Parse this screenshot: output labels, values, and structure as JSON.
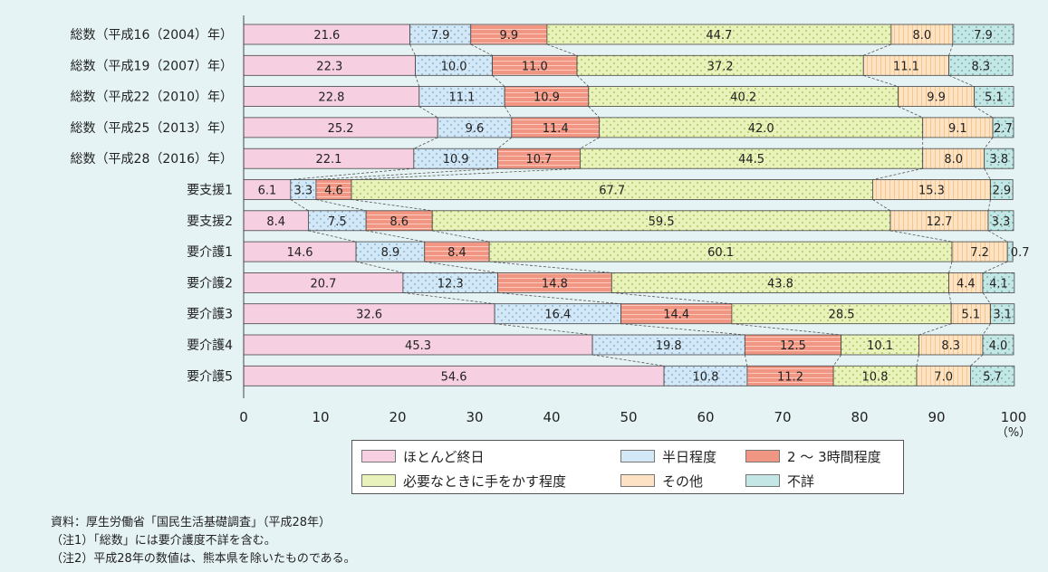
{
  "chart_data": {
    "type": "bar",
    "orientation": "horizontal",
    "stacked": true,
    "categories": [
      "総数（平成16（2004）年）",
      "総数（平成19（2007）年）",
      "総数（平成22（2010）年）",
      "総数（平成25（2013）年）",
      "総数（平成28（2016）年）",
      "要支援1",
      "要支援2",
      "要介護1",
      "要介護2",
      "要介護3",
      "要介護4",
      "要介護5"
    ],
    "series": [
      {
        "name": "ほとんど終日",
        "color": "#f6cfe0",
        "values": [
          21.6,
          22.3,
          22.8,
          25.2,
          22.1,
          6.1,
          8.4,
          14.6,
          20.7,
          32.6,
          45.3,
          54.6
        ]
      },
      {
        "name": "半日程度",
        "color": "#cfe6f6",
        "values": [
          7.9,
          10.0,
          11.1,
          9.6,
          10.9,
          3.3,
          7.5,
          8.9,
          12.3,
          16.4,
          19.8,
          10.8
        ]
      },
      {
        "name": "2 ～ 3時間程度",
        "color": "#f2907c",
        "values": [
          9.9,
          11.0,
          10.9,
          11.4,
          10.7,
          4.6,
          8.6,
          8.4,
          14.8,
          14.4,
          12.5,
          11.2
        ]
      },
      {
        "name": "必要なときに手をかす程度",
        "color": "#e5f0b4",
        "values": [
          44.7,
          37.2,
          40.2,
          42.0,
          44.5,
          67.7,
          59.5,
          60.1,
          43.8,
          28.5,
          10.1,
          10.8
        ]
      },
      {
        "name": "その他",
        "color": "#fde2be",
        "values": [
          8.0,
          11.1,
          9.9,
          9.1,
          8.0,
          15.3,
          12.7,
          7.2,
          4.4,
          5.1,
          8.3,
          7.0
        ]
      },
      {
        "name": "不詳",
        "color": "#bfe6e4",
        "values": [
          7.9,
          8.3,
          5.1,
          2.7,
          3.8,
          2.9,
          3.3,
          0.7,
          4.1,
          3.1,
          4.0,
          5.7
        ]
      }
    ],
    "xlim": [
      0,
      100
    ],
    "xticks": [
      0,
      10,
      20,
      30,
      40,
      50,
      60,
      70,
      80,
      90,
      100
    ],
    "xunit": "（%）",
    "grid": false,
    "legend_position": "bottom"
  },
  "notes": [
    "資料：厚生労働省「国民生活基礎調査」（平成28年）",
    "（注1）「総数」には要介護度不詳を含む。",
    "（注2）平成28年の数値は、熊本県を除いたものである。"
  ]
}
